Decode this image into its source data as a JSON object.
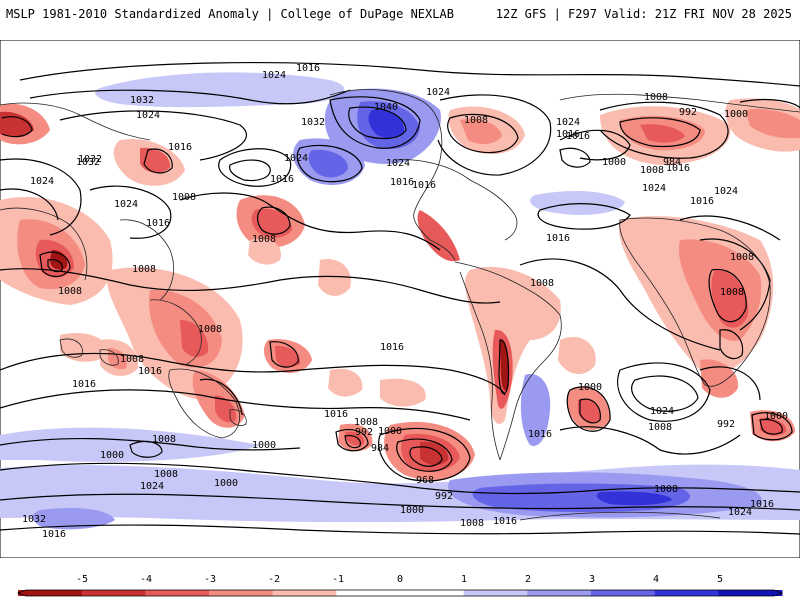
{
  "header": {
    "title": "MSLP 1981-2010 Standardized Anomaly | College of DuPage NEXLAB",
    "run_info": "12Z GFS | F297 Valid: 21Z FRI NOV 28 2025"
  },
  "colorbar": {
    "ticks": [
      "-5",
      "-4",
      "-3",
      "-2",
      "-1",
      "0",
      "1",
      "2",
      "3",
      "4",
      "5"
    ],
    "colors": [
      "#a01414",
      "#c83232",
      "#e85a5a",
      "#f58c82",
      "#fbbcb0",
      "#ffffff",
      "#ffffff",
      "#c8c8f8",
      "#9a9af0",
      "#6464e6",
      "#3232d8",
      "#1414b4"
    ]
  },
  "isobar_labels": [
    "1016",
    "1024",
    "1024",
    "1032",
    "1024",
    "1040",
    "1032",
    "1024",
    "1008",
    "1016",
    "1024",
    "1032",
    "1016",
    "1008",
    "992",
    "1000",
    "1024",
    "1016",
    "1016",
    "1024",
    "1016",
    "984",
    "1000",
    "1008",
    "1016",
    "1024",
    "1032",
    "1016",
    "1024",
    "1016",
    "1008",
    "1008",
    "1024",
    "1016",
    "1008",
    "1008",
    "1016",
    "1008",
    "1008",
    "1008",
    "1008",
    "1008",
    "1016",
    "1016",
    "1016",
    "1000",
    "1024",
    "1008",
    "992",
    "1000",
    "1016",
    "1008",
    "1000",
    "1016",
    "1000",
    "992",
    "1000",
    "984",
    "968",
    "992",
    "1008",
    "1008",
    "1008",
    "1024",
    "1000",
    "1032",
    "1016",
    "1000",
    "1008",
    "1016",
    "1024",
    "1016"
  ]
}
